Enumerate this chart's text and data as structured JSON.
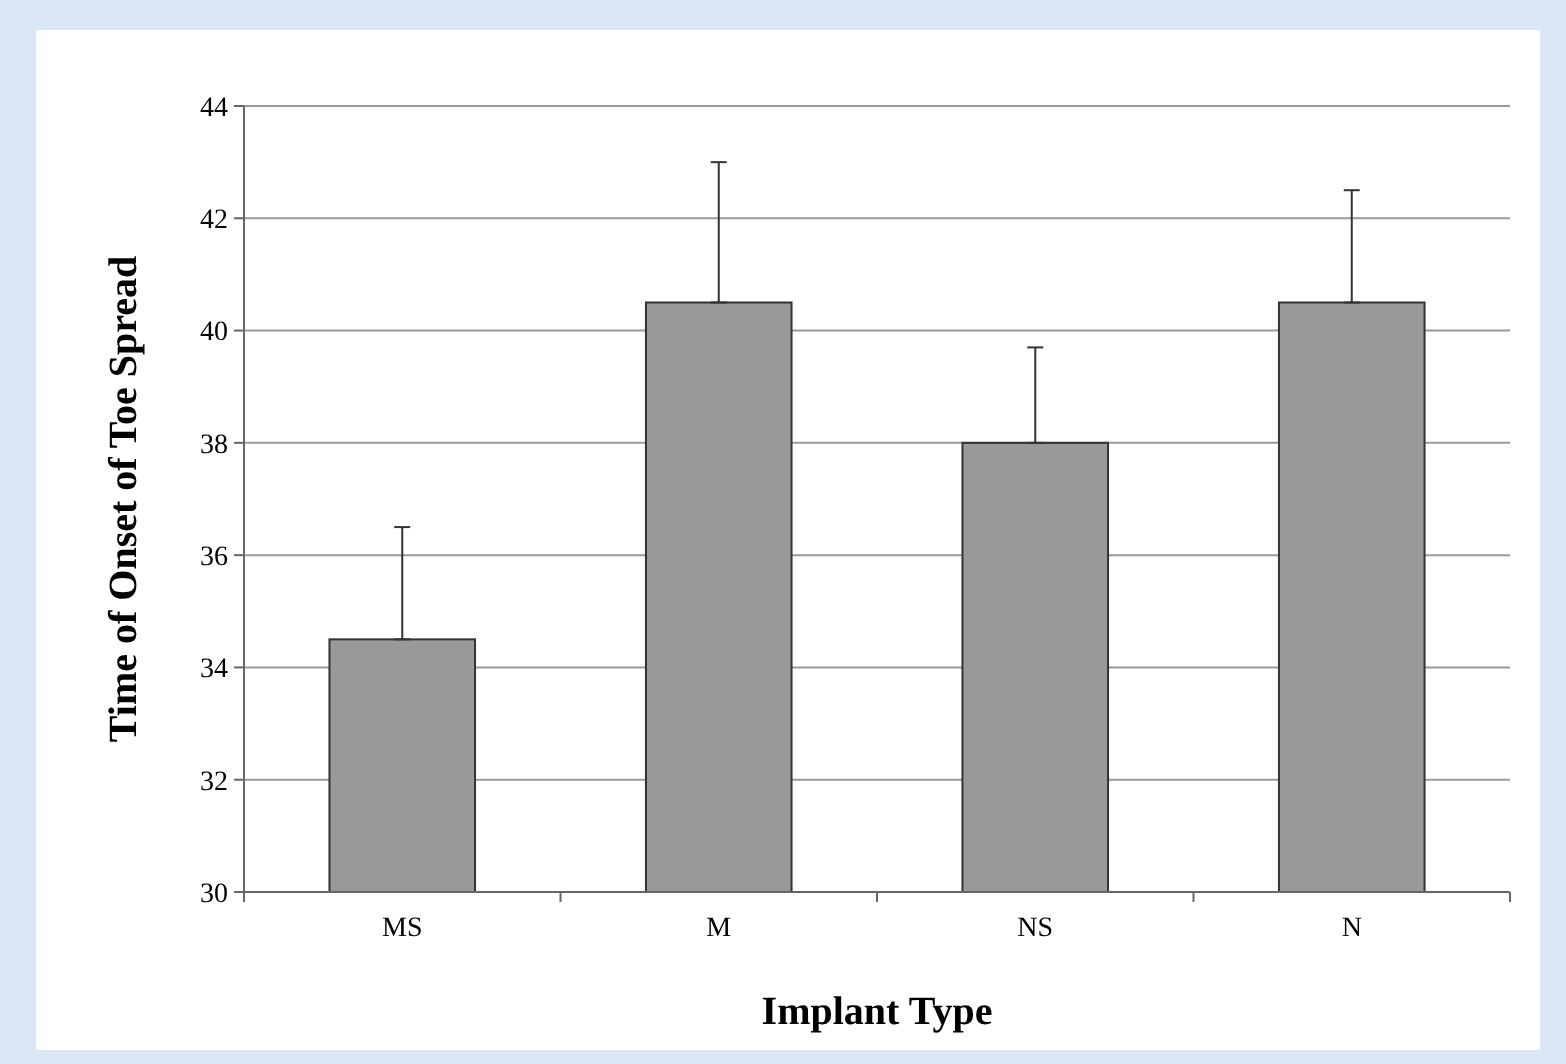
{
  "chart_data": {
    "type": "bar",
    "xlabel": "Implant Type",
    "ylabel": "Time of Onset of Toe Spread",
    "categories": [
      "MS",
      "M",
      "NS",
      "N"
    ],
    "values": [
      34.5,
      40.5,
      38,
      40.5
    ],
    "errors": [
      [
        34.5,
        36.5
      ],
      [
        40.5,
        43
      ],
      [
        38,
        39.7
      ],
      [
        40.5,
        42.5
      ]
    ],
    "color": "#999999",
    "ylim": [
      30,
      44
    ],
    "yticks": [
      30,
      32,
      34,
      36,
      38,
      40,
      42,
      44
    ],
    "grid": "y"
  }
}
